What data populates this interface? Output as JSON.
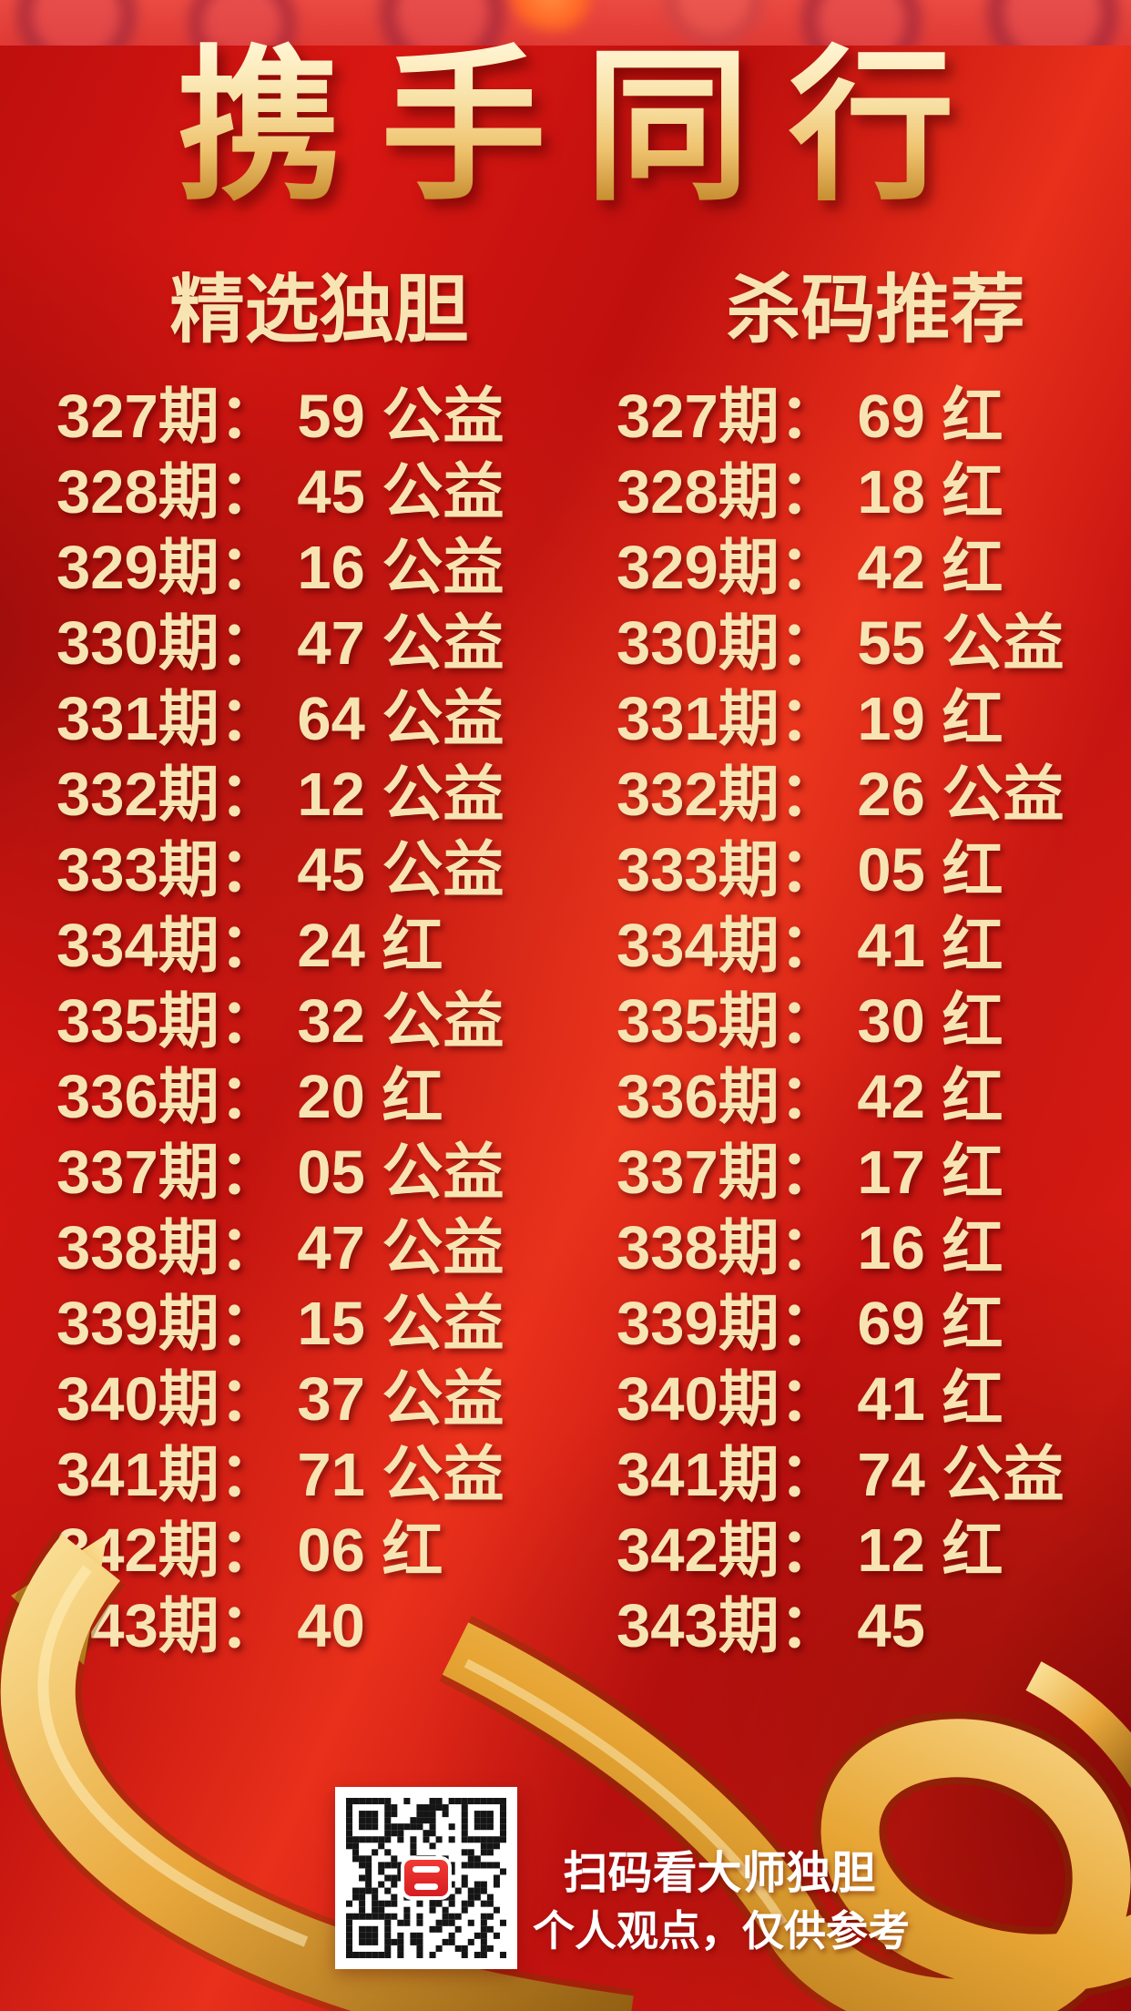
{
  "title": "携手同行",
  "columns": [
    {
      "title": "精选独胆",
      "rows": [
        "327期： 59 公益",
        "328期： 45 公益",
        "329期： 16 公益",
        "330期： 47 公益",
        "331期： 64 公益",
        "332期： 12 公益",
        "333期： 45 公益",
        "334期： 24 红",
        "335期： 32 公益",
        "336期： 20 红",
        "337期： 05 公益",
        "338期： 47 公益",
        "339期： 15 公益",
        "340期： 37 公益",
        "341期： 71 公益",
        "342期： 06 红",
        "343期： 40"
      ]
    },
    {
      "title": "杀码推荐",
      "rows": [
        "327期： 69 红",
        "328期： 18 红",
        "329期： 42 红",
        "330期： 55 公益",
        "331期： 19 红",
        "332期： 26 公益",
        "333期： 05 红",
        "334期： 41 红",
        "335期： 30 红",
        "336期： 42 红",
        "337期： 17 红",
        "338期： 16 红",
        "339期： 69 红",
        "340期： 41 红",
        "341期： 74 公益",
        "342期： 12 红",
        "343期： 45"
      ]
    }
  ],
  "footer": {
    "line1": "扫码看大师独胆",
    "line2": "个人观点，仅供参考"
  },
  "icons": {
    "qr": "qr-code",
    "qr_logo": "red-rounded-app-logo",
    "ribbon": "gold-ribbon",
    "top_border": "festive-blurred-ornament-border"
  },
  "colors": {
    "text-cream": "#f8e4b2",
    "gold-light": "#fff3cf",
    "gold-mid": "#eec26e",
    "gold-deep": "#c4882a",
    "strip-red": "#ea4a41",
    "logo-red": "#d61d22",
    "white": "#ffffff",
    "bg-red": "#c81210",
    "bg-red-bright": "#e8301b",
    "bg-red-dark": "#a90c0c",
    "ribbon-gold": "#e9a83c"
  }
}
